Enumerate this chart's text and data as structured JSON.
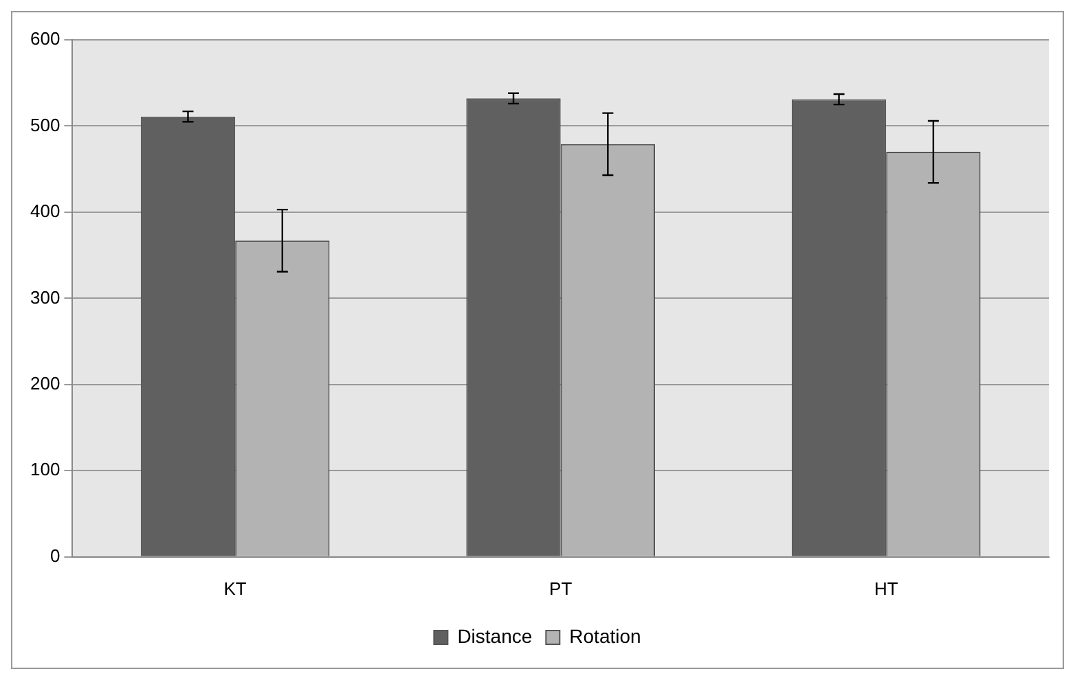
{
  "chart_data": {
    "type": "bar",
    "categories": [
      "KT",
      "PT",
      "HT"
    ],
    "series": [
      {
        "name": "Distance",
        "color": "#606060",
        "values": [
          511,
          532,
          531
        ],
        "errors": [
          6,
          6,
          6
        ]
      },
      {
        "name": "Rotation",
        "color": "#b3b3b3",
        "values": [
          367,
          479,
          470
        ],
        "errors": [
          36,
          36,
          36
        ]
      }
    ],
    "ylim": [
      0,
      600
    ],
    "yticks": [
      0,
      100,
      200,
      300,
      400,
      500,
      600
    ],
    "grid": "y",
    "legend": "bottom"
  }
}
